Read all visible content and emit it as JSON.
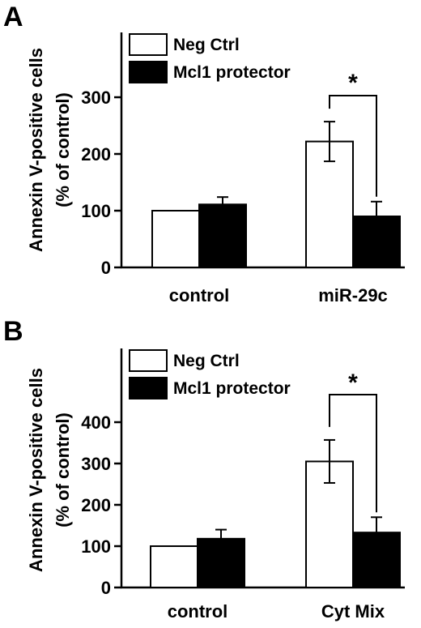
{
  "chart_data": [
    {
      "panel": "A",
      "type": "bar",
      "ylabel_line1": "Annexin V-positive cells",
      "ylabel_line2": "(% of control)",
      "categories": [
        "control",
        "miR-29c"
      ],
      "yticks": [
        0,
        100,
        200,
        300
      ],
      "ylim": [
        0,
        400
      ],
      "grid": false,
      "legend_position": "top-left",
      "series": [
        {
          "name": "Neg Ctrl",
          "fill": "#ffffff",
          "values": [
            100,
            222
          ],
          "errors": [
            0,
            35
          ]
        },
        {
          "name": "Mcl1 protector",
          "fill": "#000000",
          "values": [
            111,
            90
          ],
          "errors": [
            13,
            26
          ]
        }
      ],
      "annotation": {
        "text": "*",
        "category_index": 1
      }
    },
    {
      "panel": "B",
      "type": "bar",
      "ylabel_line1": "Annexin V-positive cells",
      "ylabel_line2": "(% of control)",
      "categories": [
        "control",
        "Cyt Mix"
      ],
      "yticks": [
        0,
        100,
        200,
        300,
        400
      ],
      "ylim": [
        0,
        500
      ],
      "grid": false,
      "legend_position": "top-left",
      "series": [
        {
          "name": "Neg Ctrl",
          "fill": "#ffffff",
          "values": [
            100,
            305
          ],
          "errors": [
            0,
            52
          ]
        },
        {
          "name": "Mcl1 protector",
          "fill": "#000000",
          "values": [
            118,
            133
          ],
          "errors": [
            22,
            37
          ]
        }
      ],
      "annotation": {
        "text": "*",
        "category_index": 1
      }
    }
  ]
}
